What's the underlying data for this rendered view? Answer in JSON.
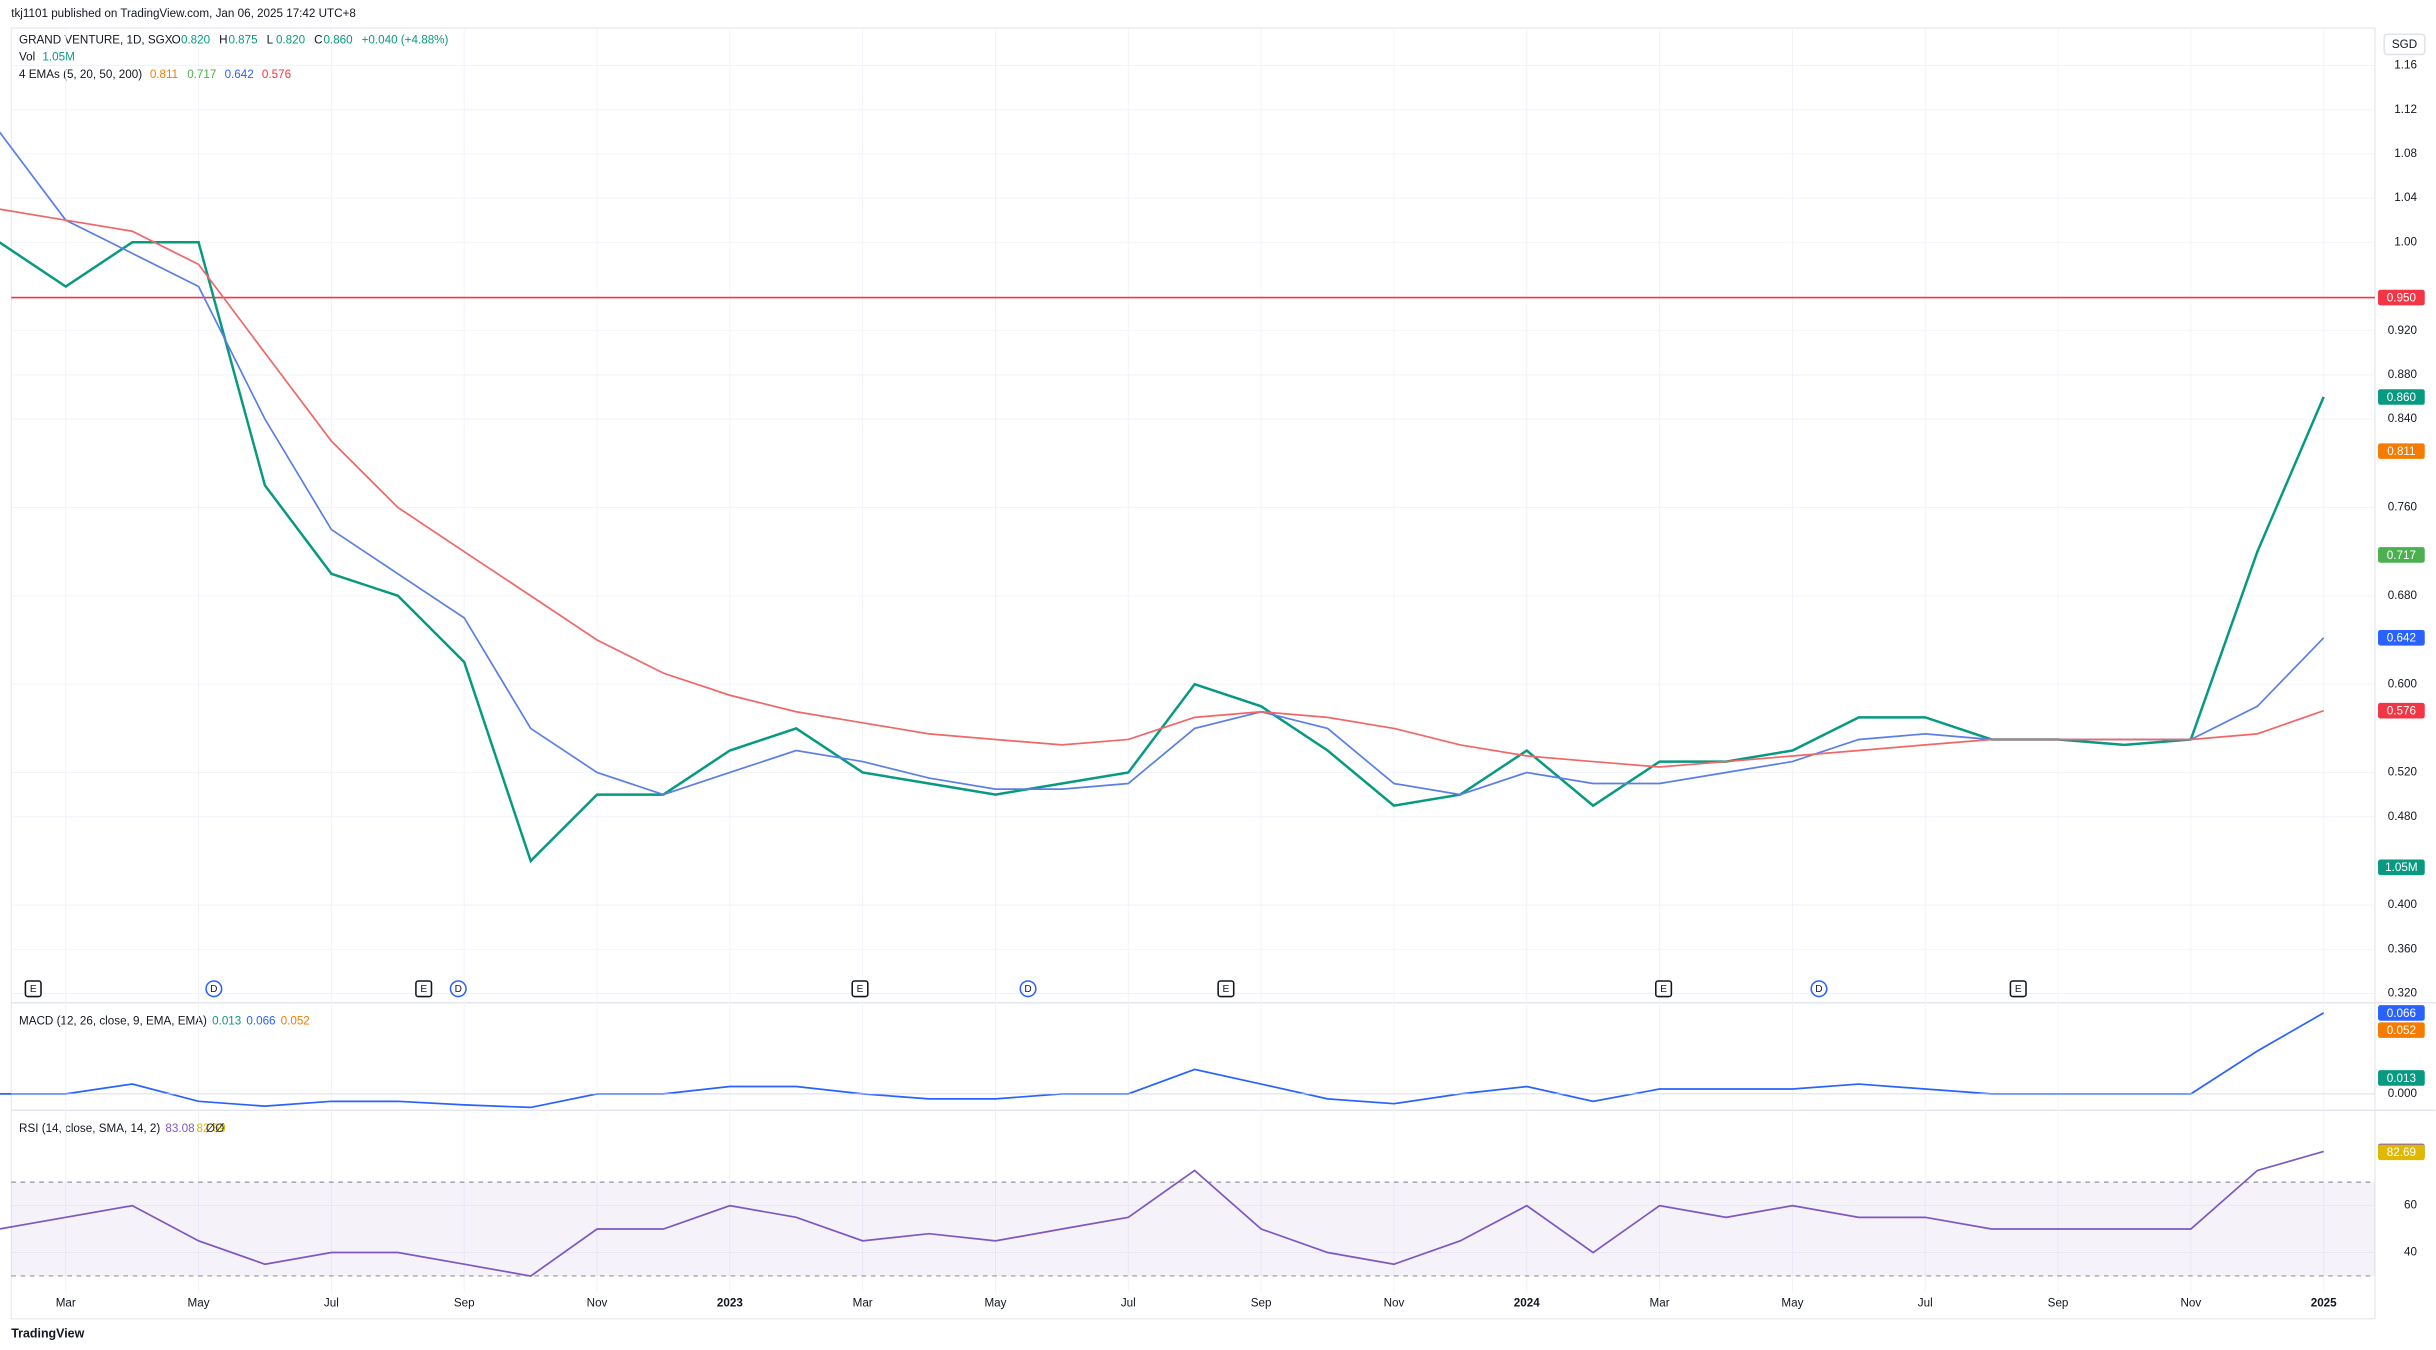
{
  "header": {
    "publisher": "tkj1101 published on TradingView.com, Jan 06, 2025 17:42 UTC+8"
  },
  "currency": "SGD",
  "brand": "TradingView",
  "chart_data": [
    {
      "type": "line",
      "symbol": "GRAND VENTURE, 1D, SGX",
      "ohlc": [
        {
          "label": "O",
          "value": "0.820"
        },
        {
          "label": "H",
          "value": "0.875"
        },
        {
          "label": "L",
          "value": "0.820"
        },
        {
          "label": "C",
          "value": "0.860"
        },
        {
          "label": "",
          "value": "+0.040 (+4.88%)"
        }
      ],
      "volume_title": "Vol",
      "volume_label": "1.05M",
      "ema_title": "4 EMAs (5, 20, 50, 200)",
      "ema_values": [
        {
          "value": "0.811",
          "color": "#f57c00"
        },
        {
          "value": "0.717",
          "color": "#4caf50"
        },
        {
          "value": "0.642",
          "color": "#2962ff"
        },
        {
          "value": "0.576",
          "color": "#f23645"
        }
      ],
      "categories": [
        null,
        "Mar",
        null,
        "May",
        null,
        "Jul",
        null,
        "Sep",
        null,
        "Nov",
        null,
        "2023",
        null,
        "Mar",
        null,
        "May",
        null,
        "Jul",
        null,
        "Sep",
        null,
        "Nov",
        null,
        "2024",
        null,
        "Mar",
        null,
        "May",
        null,
        "Jul",
        null,
        "Sep",
        null,
        "Nov",
        null,
        "2025"
      ],
      "series": [
        {
          "color": "#089981",
          "values": [
            1.0,
            0.96,
            1.0,
            1.0,
            0.78,
            0.7,
            0.68,
            0.62,
            0.44,
            0.5,
            0.5,
            0.54,
            0.56,
            0.52,
            0.51,
            0.5,
            0.51,
            0.52,
            0.6,
            0.58,
            0.54,
            0.49,
            0.5,
            0.54,
            0.49,
            0.53,
            0.53,
            0.54,
            0.57,
            0.57,
            0.55,
            0.55,
            0.545,
            0.55,
            0.72,
            0.86
          ]
        },
        {
          "color": "#5b7fe8",
          "values": [
            1.1,
            1.02,
            0.99,
            0.96,
            0.84,
            0.74,
            0.7,
            0.66,
            0.56,
            0.52,
            0.5,
            0.52,
            0.54,
            0.53,
            0.515,
            0.505,
            0.505,
            0.51,
            0.56,
            0.575,
            0.56,
            0.51,
            0.5,
            0.52,
            0.51,
            0.51,
            0.52,
            0.53,
            0.55,
            0.555,
            0.55,
            0.55,
            0.55,
            0.55,
            0.58,
            0.642
          ]
        },
        {
          "color": "#f06767",
          "values": [
            1.03,
            1.02,
            1.01,
            0.98,
            0.9,
            0.82,
            0.76,
            0.72,
            0.68,
            0.64,
            0.61,
            0.59,
            0.575,
            0.565,
            0.555,
            0.55,
            0.545,
            0.55,
            0.57,
            0.575,
            0.57,
            0.56,
            0.545,
            0.535,
            0.53,
            0.525,
            0.53,
            0.535,
            0.54,
            0.545,
            0.55,
            0.55,
            0.55,
            0.55,
            0.555,
            0.576
          ]
        }
      ],
      "hline": {
        "value": 0.95,
        "color": "#f23645"
      },
      "ylim": [
        0.313,
        1.194
      ],
      "yticks": [
        {
          "value": 0.32,
          "label": "0.320"
        },
        {
          "value": 0.36,
          "label": "0.360"
        },
        {
          "value": 0.4,
          "label": "0.400"
        },
        {
          "value": 0.48,
          "label": "0.480"
        },
        {
          "value": 0.52,
          "label": "0.520"
        },
        {
          "value": 0.6,
          "label": "0.600"
        },
        {
          "value": 0.68,
          "label": "0.680"
        },
        {
          "value": 0.76,
          "label": "0.760"
        },
        {
          "value": 0.84,
          "label": "0.840"
        },
        {
          "value": 0.88,
          "label": "0.880"
        },
        {
          "value": 0.92,
          "label": "0.920"
        },
        {
          "value": 1.0,
          "label": "1.00"
        },
        {
          "value": 1.04,
          "label": "1.04"
        },
        {
          "value": 1.08,
          "label": "1.08"
        },
        {
          "value": 1.12,
          "label": "1.12"
        },
        {
          "value": 1.16,
          "label": "1.16"
        }
      ],
      "badges": [
        {
          "value": 0.95,
          "label": "0.950",
          "color": "#f23645"
        },
        {
          "value": 0.86,
          "label": "0.860",
          "color": "#089981"
        },
        {
          "value": 0.811,
          "label": "0.811",
          "color": "#f57c00"
        },
        {
          "value": 0.717,
          "label": "0.717",
          "color": "#4caf50"
        },
        {
          "value": 0.642,
          "label": "0.642",
          "color": "#2962ff"
        },
        {
          "value": 0.576,
          "label": "0.576",
          "color": "#f23645"
        }
      ],
      "events": [
        {
          "label": "E",
          "x": 0.51
        },
        {
          "label": "D",
          "x": 3.23
        },
        {
          "label": "E",
          "x": 6.39
        },
        {
          "label": "D",
          "x": 6.91
        },
        {
          "label": "E",
          "x": 12.96
        },
        {
          "label": "D",
          "x": 15.49
        },
        {
          "label": "E",
          "x": 18.47
        },
        {
          "label": "E",
          "x": 25.06
        },
        {
          "label": "D",
          "x": 27.4
        },
        {
          "label": "E",
          "x": 30.4
        }
      ],
      "grid": true
    },
    {
      "type": "line",
      "title": "MACD (12, 26, close, 9, EMA, EMA)",
      "legend_values": [
        {
          "value": "0.013",
          "color": "#089981"
        },
        {
          "value": "0.066",
          "color": "#2962ff"
        },
        {
          "value": "0.052",
          "color": "#f57c00"
        }
      ],
      "series": [
        {
          "color": "#2962ff",
          "values": [
            0.0,
            0.0,
            0.008,
            -0.006,
            -0.01,
            -0.006,
            -0.006,
            -0.009,
            -0.011,
            0.0,
            0.0,
            0.006,
            0.006,
            0.0,
            -0.004,
            -0.004,
            0.0,
            0.0,
            0.02,
            0.008,
            -0.004,
            -0.008,
            0.0,
            0.006,
            -0.006,
            0.004,
            0.004,
            0.004,
            0.008,
            0.004,
            0.0,
            0.0,
            0.0,
            0.0,
            0.035,
            0.066
          ]
        }
      ],
      "ylim": [
        -0.012,
        0.073
      ],
      "yticks": [
        {
          "value": 0,
          "label": "0.000"
        }
      ],
      "badges": [
        {
          "value": 0.066,
          "label": "0.066",
          "color": "#2962ff"
        },
        {
          "value": 0.052,
          "label": "0.052",
          "color": "#f57c00"
        },
        {
          "value": 0.013,
          "label": "0.013",
          "color": "#089981"
        }
      ]
    },
    {
      "type": "line",
      "title": "RSI (14, close, SMA, 14, 2)",
      "legend_values": [
        {
          "value": "83.08",
          "color": "#7e57c2"
        },
        {
          "value": "82.69",
          "color": "#e0b800"
        },
        {
          "value": "Ø",
          "color": "#333"
        },
        {
          "value": "Ø",
          "color": "#333"
        }
      ],
      "series": [
        {
          "color": "#7e57c2",
          "values": [
            50,
            55,
            60,
            45,
            35,
            40,
            40,
            35,
            30,
            50,
            50,
            60,
            55,
            45,
            48,
            45,
            50,
            55,
            75,
            50,
            40,
            35,
            45,
            60,
            40,
            60,
            55,
            60,
            55,
            55,
            50,
            50,
            50,
            50,
            75,
            83.08
          ]
        }
      ],
      "bands": [
        30,
        70
      ],
      "ylim": [
        23,
        100
      ],
      "yticks": [
        40,
        60
      ],
      "badges": [
        {
          "value": 83.08,
          "label": "83.08",
          "color": "#7e57c2"
        },
        {
          "value": 82.69,
          "label": "82.69",
          "color": "#e0b800"
        }
      ]
    }
  ]
}
